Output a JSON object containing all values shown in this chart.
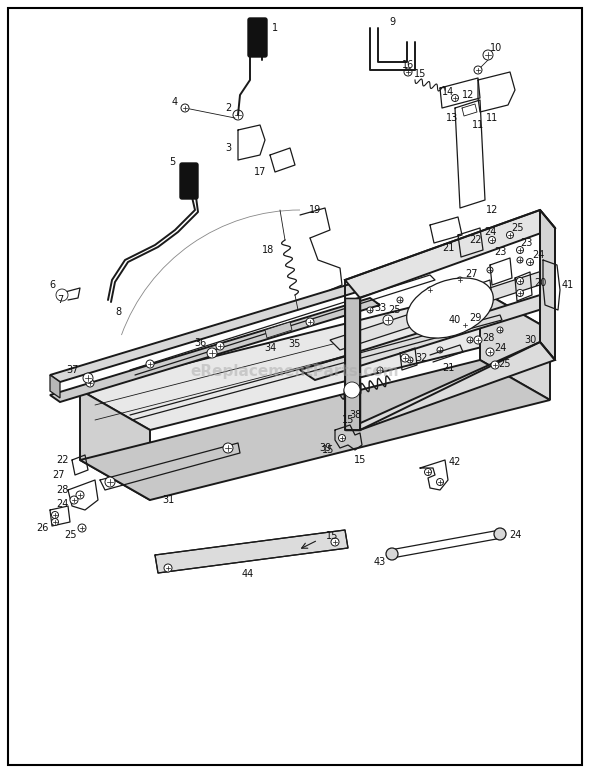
{
  "bg_color": "#ffffff",
  "border_color": "#000000",
  "line_color": "#1a1a1a",
  "watermark_text": "eReplacementParts.com",
  "fig_width": 5.9,
  "fig_height": 7.73,
  "dpi": 100,
  "lw_heavy": 1.4,
  "lw_med": 0.9,
  "lw_thin": 0.6,
  "label_fs": 7.0,
  "label_color": "#111111"
}
